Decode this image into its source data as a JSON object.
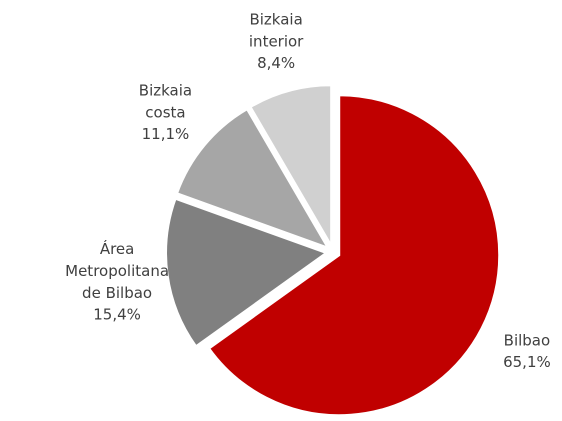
{
  "chart_data": {
    "type": "pie",
    "categories": [
      "Bilbao",
      "Área Metropolitana de Bilbao",
      "Bizkaia costa",
      "Bizkaia interior"
    ],
    "values": [
      65.1,
      15.4,
      11.1,
      8.4
    ],
    "value_labels": [
      "65,1%",
      "15,4%",
      "11,1%",
      "8,4%"
    ],
    "colors": [
      "#c00000",
      "#808080",
      "#a6a6a6",
      "#d0d0d0"
    ]
  }
}
